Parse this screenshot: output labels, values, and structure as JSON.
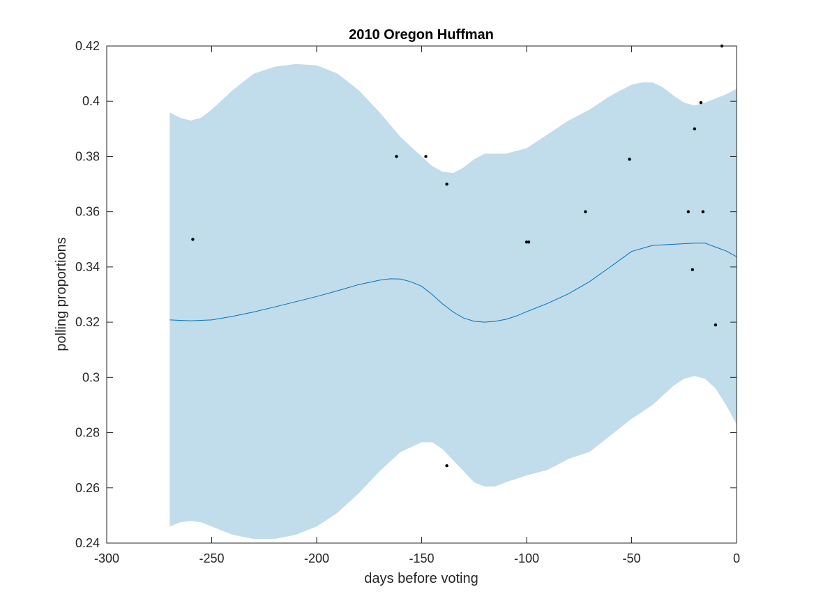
{
  "chart_data": {
    "type": "line",
    "title": "2010 Oregon Huffman",
    "xlabel": "days before voting",
    "ylabel": "polling proportions",
    "xlim": [
      -300,
      0
    ],
    "ylim": [
      0.24,
      0.42
    ],
    "xticks": [
      -300,
      -250,
      -200,
      -150,
      -100,
      -50,
      0
    ],
    "xtick_labels": [
      "-300",
      "-250",
      "-200",
      "-150",
      "-100",
      "-50",
      "0"
    ],
    "yticks": [
      0.24,
      0.26,
      0.28,
      0.3,
      0.32,
      0.34,
      0.36,
      0.38,
      0.4,
      0.42
    ],
    "ytick_labels": [
      "0.24",
      "0.26",
      "0.28",
      "0.3",
      "0.32",
      "0.34",
      "0.36",
      "0.38",
      "0.4",
      "0.42"
    ],
    "grid": false,
    "colors": {
      "band": "#c1dcea",
      "line": "#0072bd",
      "points": "#000000",
      "axes": "#262626"
    },
    "trend": {
      "x": [
        -270,
        -260,
        -250,
        -240,
        -230,
        -220,
        -210,
        -200,
        -190,
        -180,
        -170,
        -165,
        -160,
        -155,
        -150,
        -145,
        -140,
        -135,
        -130,
        -125,
        -120,
        -115,
        -110,
        -105,
        -100,
        -90,
        -80,
        -70,
        -60,
        -50,
        -40,
        -30,
        -20,
        -15,
        -10,
        -5,
        0
      ],
      "y": [
        0.3208,
        0.3205,
        0.3208,
        0.3221,
        0.3237,
        0.3255,
        0.3274,
        0.3293,
        0.3314,
        0.3336,
        0.3352,
        0.3357,
        0.3356,
        0.3346,
        0.333,
        0.33,
        0.3266,
        0.3237,
        0.3215,
        0.3203,
        0.32,
        0.3203,
        0.321,
        0.3222,
        0.3238,
        0.3268,
        0.3303,
        0.3347,
        0.3401,
        0.3456,
        0.3478,
        0.3482,
        0.3486,
        0.3486,
        0.3472,
        0.3458,
        0.3437
      ]
    },
    "band_upper": {
      "x": [
        -270,
        -265,
        -260,
        -255,
        -250,
        -240,
        -230,
        -220,
        -210,
        -200,
        -190,
        -180,
        -170,
        -160,
        -150,
        -145,
        -140,
        -135,
        -130,
        -125,
        -120,
        -110,
        -100,
        -90,
        -80,
        -70,
        -60,
        -50,
        -45,
        -40,
        -35,
        -30,
        -25,
        -20,
        -15,
        -10,
        -5,
        0
      ],
      "y": [
        0.396,
        0.394,
        0.393,
        0.394,
        0.397,
        0.404,
        0.41,
        0.4125,
        0.4135,
        0.413,
        0.41,
        0.404,
        0.396,
        0.387,
        0.38,
        0.3765,
        0.3745,
        0.374,
        0.376,
        0.379,
        0.381,
        0.381,
        0.383,
        0.388,
        0.393,
        0.397,
        0.402,
        0.406,
        0.4068,
        0.4068,
        0.405,
        0.402,
        0.3995,
        0.3985,
        0.3995,
        0.401,
        0.4025,
        0.4045
      ]
    },
    "band_lower": {
      "x": [
        -270,
        -265,
        -260,
        -255,
        -250,
        -240,
        -230,
        -220,
        -210,
        -200,
        -190,
        -180,
        -170,
        -160,
        -150,
        -145,
        -140,
        -135,
        -130,
        -125,
        -120,
        -115,
        -110,
        -100,
        -90,
        -80,
        -70,
        -60,
        -50,
        -40,
        -30,
        -25,
        -20,
        -15,
        -10,
        -5,
        0
      ],
      "y": [
        0.246,
        0.2475,
        0.248,
        0.2475,
        0.246,
        0.243,
        0.2415,
        0.2415,
        0.243,
        0.246,
        0.251,
        0.258,
        0.266,
        0.273,
        0.2765,
        0.2765,
        0.274,
        0.27,
        0.266,
        0.262,
        0.2605,
        0.2605,
        0.262,
        0.2645,
        0.2665,
        0.2705,
        0.273,
        0.279,
        0.285,
        0.29,
        0.297,
        0.2995,
        0.3005,
        0.2995,
        0.296,
        0.29,
        0.283
      ]
    },
    "points": {
      "x": [
        -259,
        -162,
        -148,
        -138,
        -138,
        -100,
        -99,
        -72,
        -51,
        -23,
        -21,
        -20,
        -17,
        -16,
        -10,
        -7
      ],
      "y": [
        0.35,
        0.38,
        0.38,
        0.37,
        0.268,
        0.349,
        0.349,
        0.36,
        0.379,
        0.36,
        0.339,
        0.39,
        0.3995,
        0.36,
        0.319,
        0.42
      ]
    }
  }
}
